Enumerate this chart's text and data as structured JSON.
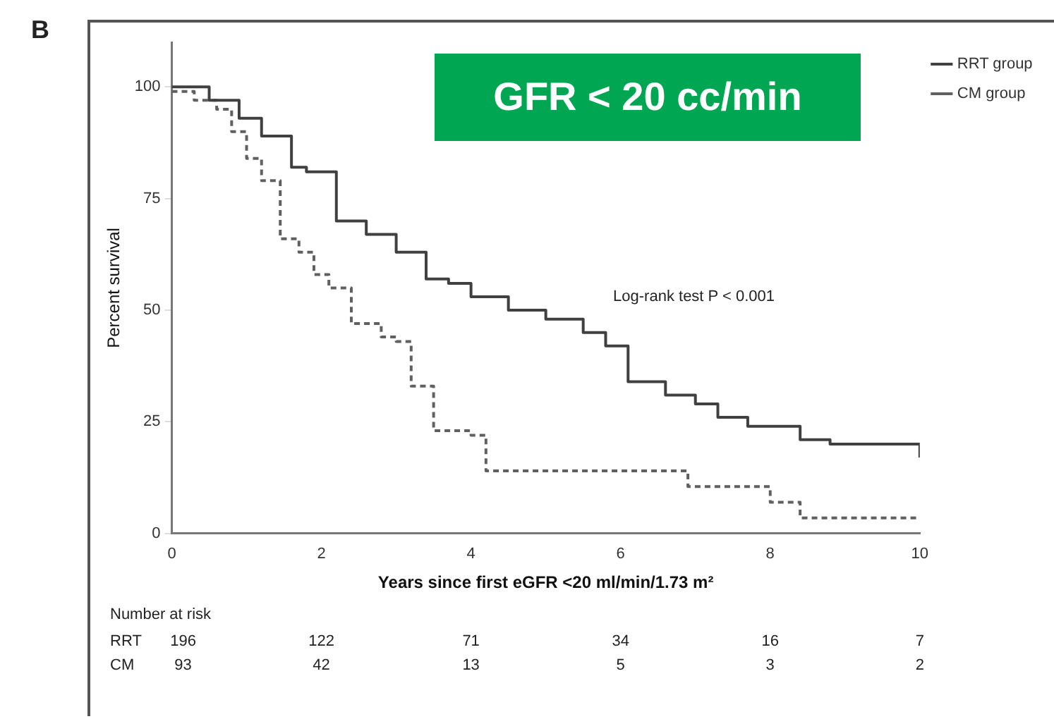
{
  "chart_data": {
    "type": "step",
    "title": "GFR < 20 cc/min",
    "xlabel": "Years since first eGFR <20 ml/min/1.73 m²",
    "ylabel": "Percent survival",
    "xlim": [
      0,
      10
    ],
    "ylim": [
      0,
      110
    ],
    "xticks": [
      0,
      2,
      4,
      6,
      8,
      10
    ],
    "yticks": [
      0,
      25,
      50,
      75,
      100
    ],
    "grid": false,
    "legend": "top right",
    "annotations": [
      "B",
      "Log-rank test P < 0.001",
      "Number at risk",
      "RRT 196 122 71 34 16 7",
      "CM 93 42 13 5 3 2"
    ],
    "series": [
      {
        "name": "RRT group",
        "color": "#404040",
        "line_style": "solid",
        "x": [
          0,
          0.5,
          0.9,
          1.2,
          1.6,
          1.8,
          2.2,
          2.6,
          3.0,
          3.4,
          3.7,
          4.0,
          4.5,
          5.0,
          5.5,
          5.8,
          6.1,
          6.6,
          7.0,
          7.3,
          7.7,
          8.4,
          8.8,
          9.95,
          10
        ],
        "values": [
          100,
          97,
          93,
          89,
          82,
          81,
          70,
          67,
          63,
          57,
          56,
          53,
          50,
          48,
          45,
          42,
          34,
          31,
          29,
          26,
          24,
          21,
          20,
          20,
          17
        ]
      },
      {
        "name": "CM group",
        "color": "#606060",
        "line_style": "dashed",
        "x": [
          0,
          0.3,
          0.6,
          0.8,
          1.0,
          1.2,
          1.45,
          1.7,
          1.9,
          2.1,
          2.4,
          2.8,
          3.0,
          3.2,
          3.5,
          4.0,
          4.2,
          6.9,
          8.0,
          8.4,
          10
        ],
        "values": [
          99,
          97,
          95,
          90,
          84,
          79,
          66,
          63,
          58,
          55,
          47,
          44,
          43,
          33,
          23,
          22,
          14,
          10.5,
          7,
          3.5,
          3.5
        ]
      }
    ]
  }
}
